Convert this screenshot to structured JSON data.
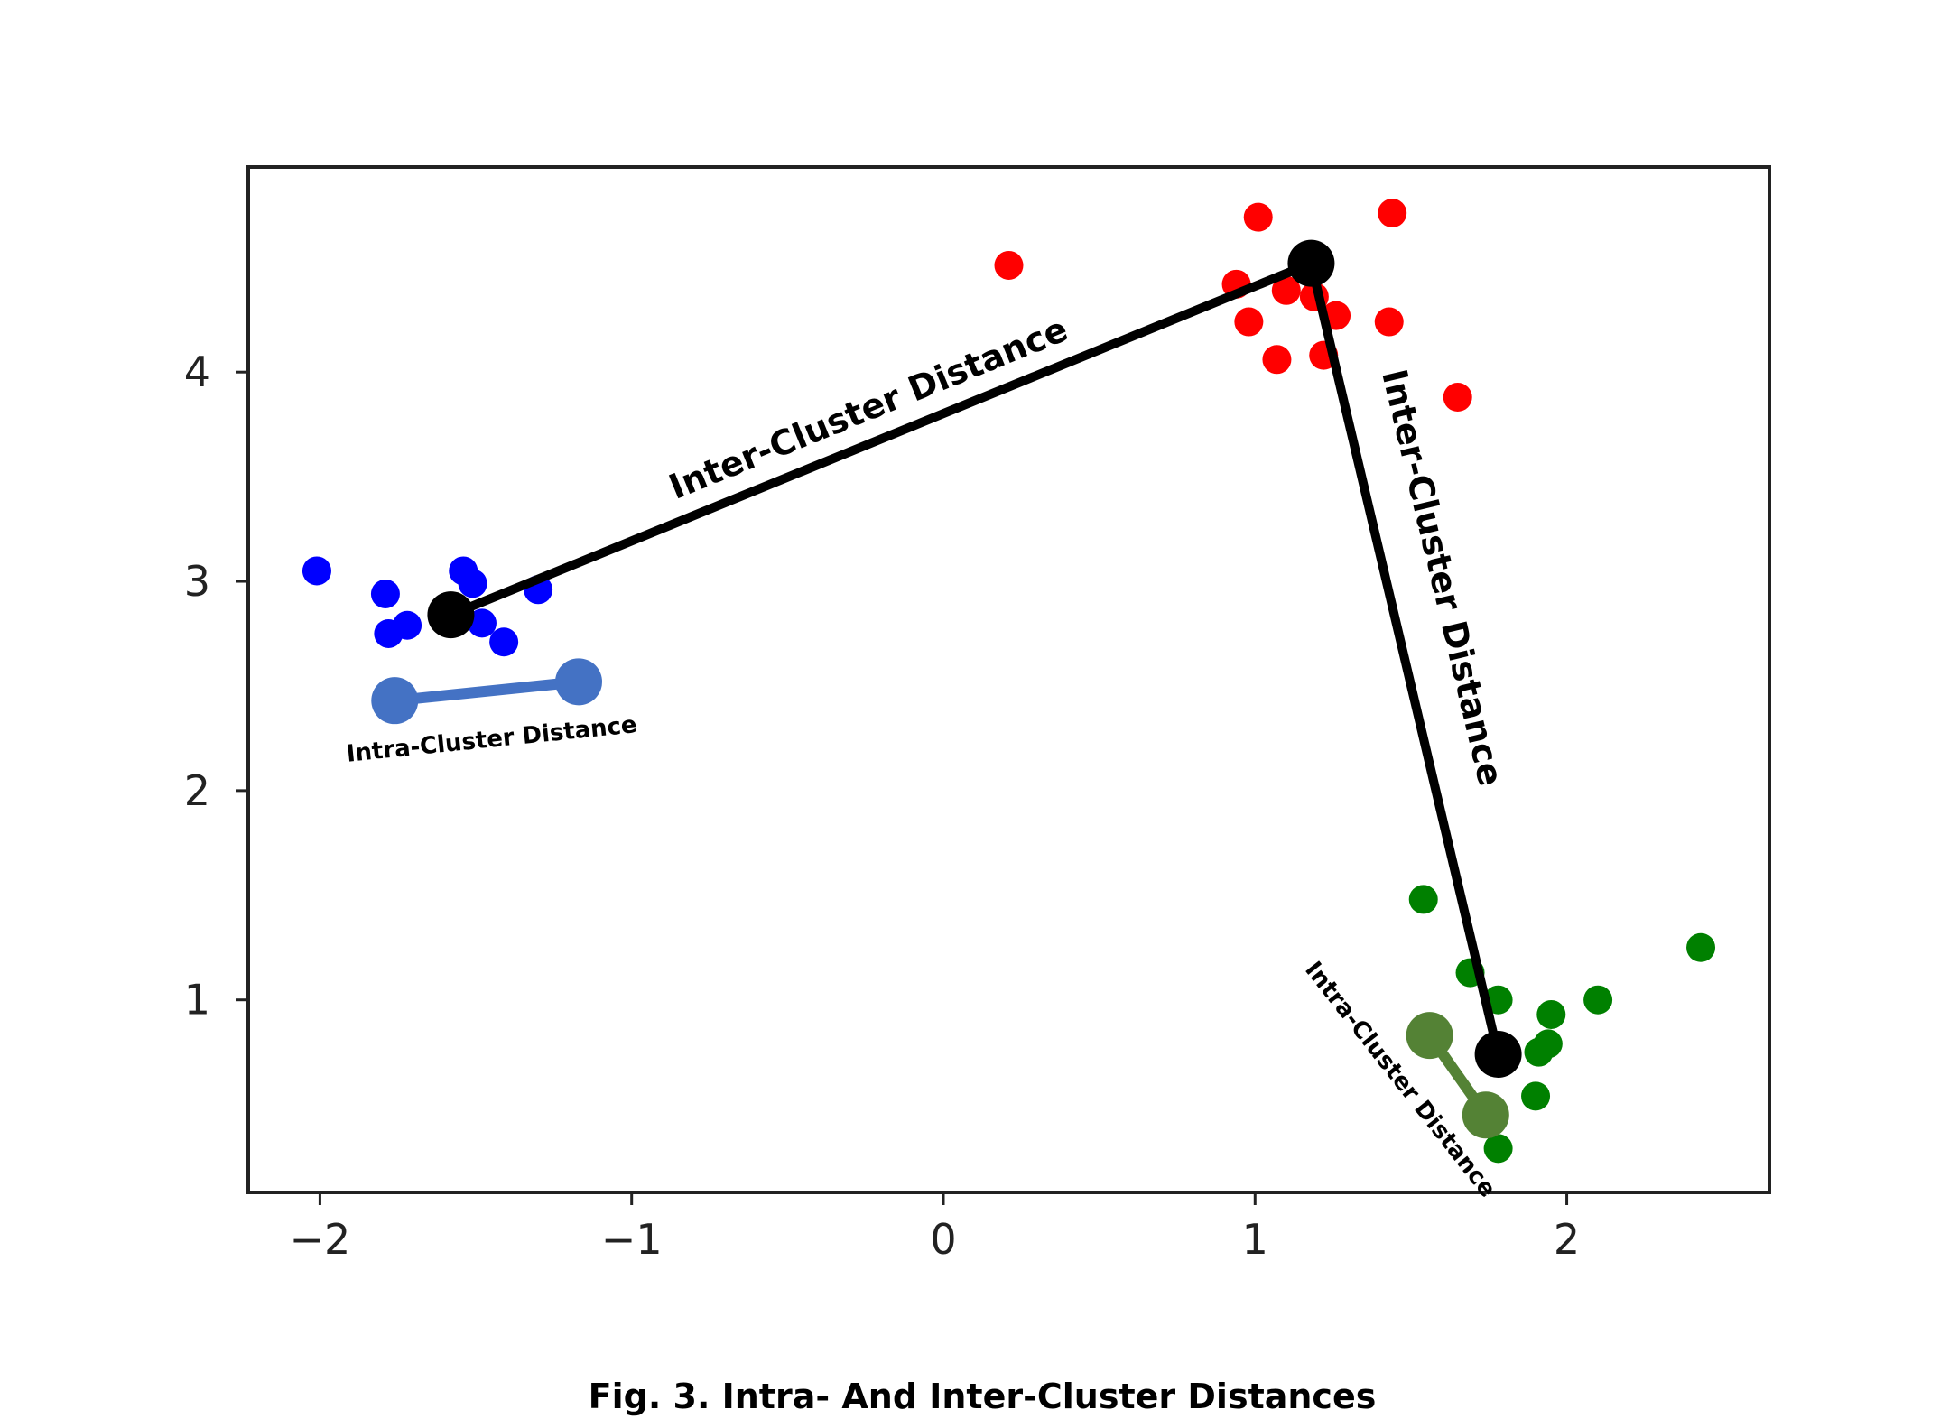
{
  "chart_data": {
    "type": "scatter",
    "title": "",
    "caption": "Fig. 3. Intra- And Inter-Cluster Distances",
    "xlabel": "",
    "ylabel": "",
    "xlim": [
      -2.23,
      2.65
    ],
    "ylim": [
      0.08,
      4.98
    ],
    "x_ticks": [
      -2,
      -1,
      0,
      1,
      2
    ],
    "x_tick_labels": [
      "−2",
      "−1",
      "0",
      "1",
      "2"
    ],
    "y_ticks": [
      1,
      2,
      3,
      4
    ],
    "y_tick_labels": [
      "1",
      "2",
      "3",
      "4"
    ],
    "grid": false,
    "legend": "none",
    "series": [
      {
        "name": "blue cluster",
        "color": "#0000ff",
        "points": [
          [
            -2.01,
            3.05
          ],
          [
            -1.79,
            2.94
          ],
          [
            -1.78,
            2.75
          ],
          [
            -1.72,
            2.79
          ],
          [
            -1.54,
            3.05
          ],
          [
            -1.51,
            2.99
          ],
          [
            -1.48,
            2.8
          ],
          [
            -1.41,
            2.71
          ],
          [
            -1.3,
            2.96
          ]
        ]
      },
      {
        "name": "red cluster",
        "color": "#ff0000",
        "points": [
          [
            0.21,
            4.51
          ],
          [
            1.01,
            4.74
          ],
          [
            1.44,
            4.76
          ],
          [
            0.94,
            4.42
          ],
          [
            1.1,
            4.39
          ],
          [
            1.19,
            4.36
          ],
          [
            1.26,
            4.27
          ],
          [
            0.98,
            4.24
          ],
          [
            1.43,
            4.24
          ],
          [
            1.07,
            4.06
          ],
          [
            1.22,
            4.08
          ],
          [
            1.65,
            3.88
          ]
        ]
      },
      {
        "name": "green cluster",
        "color": "#008000",
        "points": [
          [
            1.54,
            1.48
          ],
          [
            1.69,
            1.13
          ],
          [
            1.78,
            1.0
          ],
          [
            1.95,
            0.93
          ],
          [
            2.1,
            1.0
          ],
          [
            2.43,
            1.25
          ],
          [
            1.91,
            0.75
          ],
          [
            1.94,
            0.79
          ],
          [
            1.9,
            0.54
          ],
          [
            1.78,
            0.29
          ]
        ]
      }
    ],
    "centroids": {
      "color": "#000000",
      "points": [
        [
          -1.58,
          2.84
        ],
        [
          1.18,
          4.52
        ],
        [
          1.78,
          0.74
        ]
      ]
    },
    "inter_cluster_lines": [
      {
        "from": [
          -1.58,
          2.84
        ],
        "to": [
          1.18,
          4.52
        ],
        "label": "Inter-Cluster Distance"
      },
      {
        "from": [
          1.18,
          4.52
        ],
        "to": [
          1.78,
          0.74
        ],
        "label": "Inter-Cluster Distance"
      }
    ],
    "intra_cluster_lines": [
      {
        "from": [
          -1.76,
          2.43
        ],
        "to": [
          -1.17,
          2.52
        ],
        "color": "#4472c4",
        "label": "Intra-Cluster Distance"
      },
      {
        "from": [
          1.56,
          0.83
        ],
        "to": [
          1.74,
          0.45
        ],
        "color": "#548235",
        "label": "Intra-Cluster Distance"
      }
    ]
  }
}
